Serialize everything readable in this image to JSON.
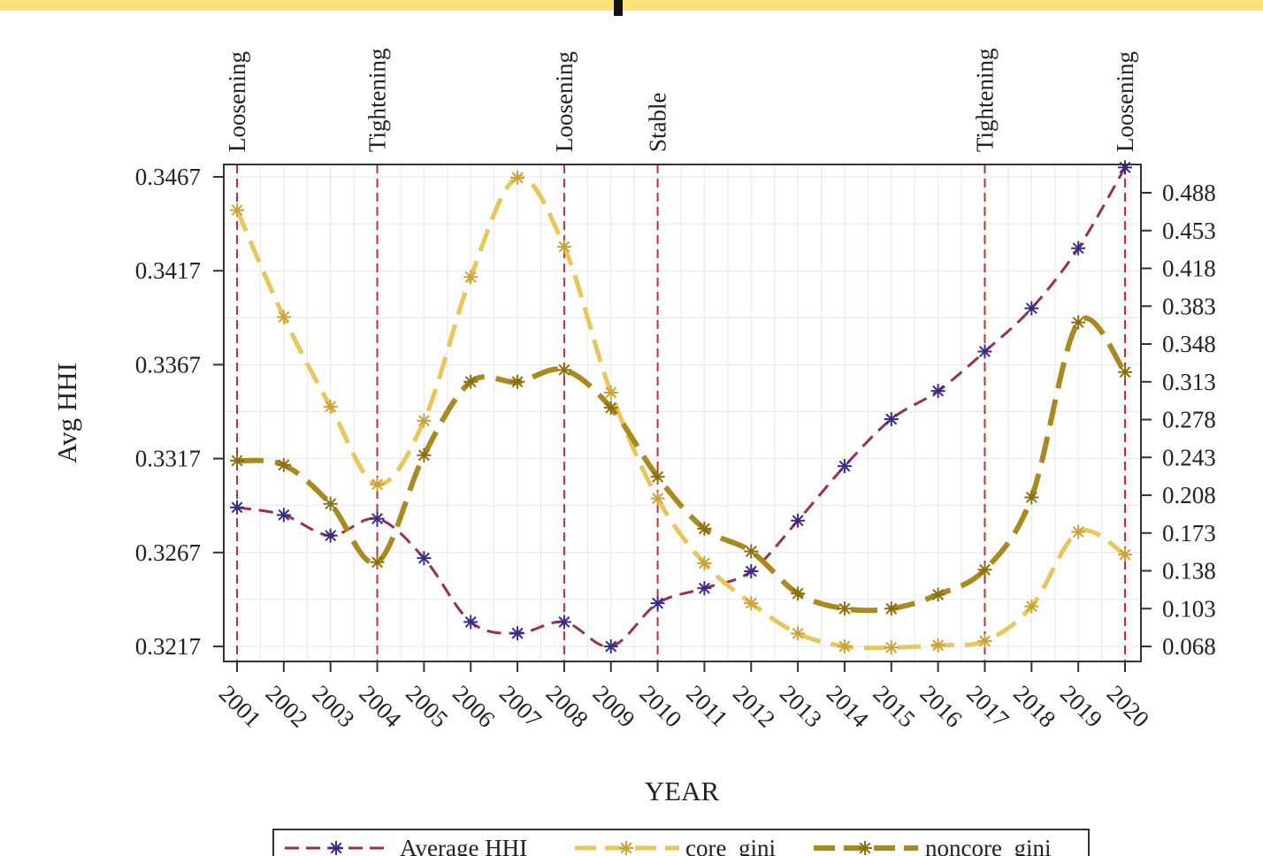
{
  "chart_data": {
    "type": "line",
    "title": "",
    "xlabel": "YEAR",
    "ylabel": "Avg HHI",
    "x": [
      2001,
      2002,
      2003,
      2004,
      2005,
      2006,
      2007,
      2008,
      2009,
      2010,
      2011,
      2012,
      2013,
      2014,
      2015,
      2016,
      2017,
      2018,
      2019,
      2020
    ],
    "x_tick_labels": [
      "2001",
      "2002",
      "2003",
      "2004",
      "2005",
      "2006",
      "2007",
      "2008",
      "2009",
      "2010",
      "2011",
      "2012",
      "2013",
      "2014",
      "2015",
      "2016",
      "2017",
      "2018",
      "2019",
      "2020"
    ],
    "xlim": [
      2001,
      2020
    ],
    "y_left": {
      "lim": [
        0.3217,
        0.3467
      ],
      "ticks": [
        0.3217,
        0.3267,
        0.3317,
        0.3367,
        0.3417,
        0.3467
      ],
      "tick_labels": [
        "0.3217",
        "0.3267",
        "0.3317",
        "0.3367",
        "0.3417",
        "0.3467"
      ]
    },
    "y_right": {
      "lim": [
        0.068,
        0.488
      ],
      "ticks": [
        0.068,
        0.103,
        0.138,
        0.173,
        0.208,
        0.243,
        0.278,
        0.313,
        0.348,
        0.383,
        0.418,
        0.453,
        0.488
      ],
      "tick_labels": [
        "0.068",
        "0.103",
        "0.138",
        "0.173",
        "0.208",
        "0.243",
        "0.278",
        "0.313",
        "0.348",
        "0.383",
        "0.418",
        "0.453",
        "0.488"
      ]
    },
    "grid": true,
    "legend_position": "bottom",
    "series": [
      {
        "name": "Average HHI",
        "axis": "left",
        "color": "#9b2e55",
        "marker_color": "#3b2a8a",
        "dash": "medium",
        "values": [
          0.3291,
          0.3287,
          0.3276,
          0.3285,
          0.3264,
          0.323,
          0.3224,
          0.323,
          0.3217,
          0.324,
          0.3248,
          0.3257,
          0.3284,
          0.3313,
          0.3338,
          0.3353,
          0.3374,
          0.3397,
          0.3429,
          0.3472
        ]
      },
      {
        "name": "core_gini",
        "axis": "right",
        "color": "#e8c65a",
        "marker_color": "#c9a23a",
        "dash": "long",
        "values": [
          0.472,
          0.373,
          0.29,
          0.218,
          0.277,
          0.41,
          0.502,
          0.438,
          0.303,
          0.205,
          0.145,
          0.108,
          0.08,
          0.068,
          0.067,
          0.069,
          0.073,
          0.105,
          0.174,
          0.153
        ]
      },
      {
        "name": "noncore_gini",
        "axis": "right",
        "color": "#a88a1e",
        "marker_color": "#8a6f10",
        "dash": "heavy",
        "values": [
          0.24,
          0.236,
          0.2,
          0.146,
          0.245,
          0.313,
          0.313,
          0.324,
          0.289,
          0.225,
          0.177,
          0.156,
          0.117,
          0.103,
          0.103,
          0.116,
          0.139,
          0.206,
          0.368,
          0.322
        ]
      }
    ],
    "annotations": [
      {
        "x": 2001,
        "label": "Loosening"
      },
      {
        "x": 2004,
        "label": "Tightening"
      },
      {
        "x": 2008,
        "label": "Loosening"
      },
      {
        "x": 2010,
        "label": "Stable"
      },
      {
        "x": 2017,
        "label": "Tightening"
      },
      {
        "x": 2020,
        "label": "Loosening"
      }
    ],
    "colors": {
      "frame_band": "#fde07a",
      "policy_line": "#b8323a",
      "grid": "#e6e6ec",
      "axis": "#333333"
    }
  }
}
